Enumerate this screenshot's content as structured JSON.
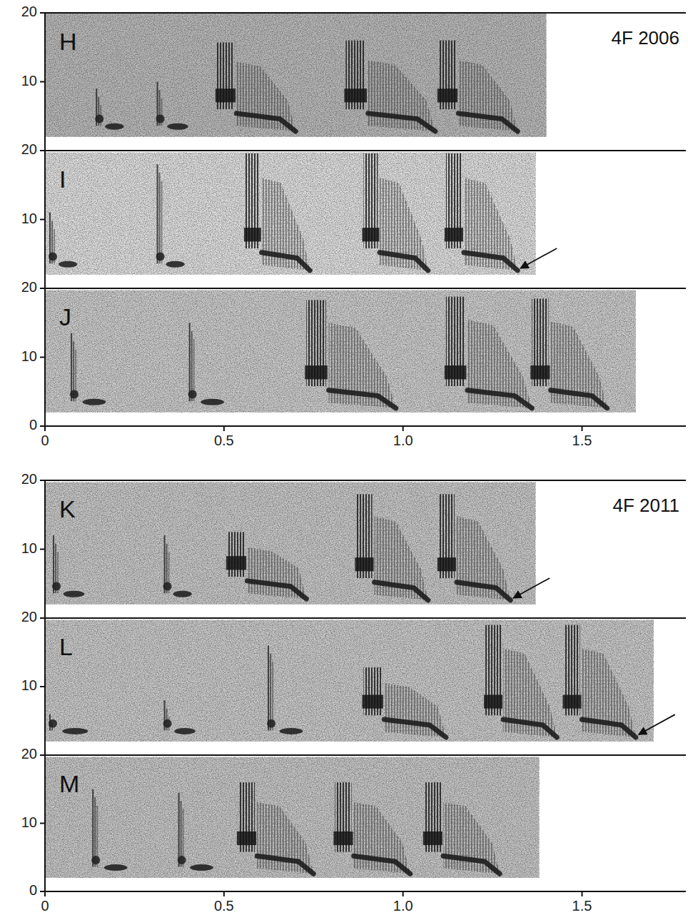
{
  "chart_data": [
    {
      "type": "spectrogram",
      "title": "H",
      "annotation": "4F 2006",
      "xlim": [
        0,
        1.79
      ],
      "ylim": [
        0,
        20
      ],
      "yticks": [
        10,
        20
      ],
      "duration": 1.4,
      "band": [
        2,
        20
      ],
      "notes": [
        {
          "type": "intro",
          "start": 0.14,
          "end": 0.22,
          "fmin": 3,
          "fmax": 9
        },
        {
          "type": "intro",
          "start": 0.31,
          "end": 0.4,
          "fmin": 3,
          "fmax": 10
        },
        {
          "type": "complex",
          "start": 0.48,
          "end": 0.7,
          "fmin": 2.8,
          "fmax": 15.7
        },
        {
          "type": "complex",
          "start": 0.84,
          "end": 1.09,
          "fmin": 2.8,
          "fmax": 16
        },
        {
          "type": "complex",
          "start": 1.1,
          "end": 1.32,
          "fmin": 2.8,
          "fmax": 16
        }
      ]
    },
    {
      "type": "spectrogram",
      "title": "I",
      "xlim": [
        0,
        1.79
      ],
      "ylim": [
        0,
        20
      ],
      "yticks": [
        10,
        20
      ],
      "duration": 1.37,
      "band": [
        2,
        19.7
      ],
      "arrow": [
        1.32,
        2.7
      ],
      "notes": [
        {
          "type": "intro",
          "start": 0.01,
          "end": 0.09,
          "fmin": 3,
          "fmax": 11
        },
        {
          "type": "intro",
          "start": 0.31,
          "end": 0.39,
          "fmin": 3,
          "fmax": 18
        },
        {
          "type": "complex",
          "start": 0.56,
          "end": 0.74,
          "fmin": 2.6,
          "fmax": 19.6
        },
        {
          "type": "complex",
          "start": 0.89,
          "end": 1.07,
          "fmin": 2.6,
          "fmax": 19.6
        },
        {
          "type": "complex",
          "start": 1.12,
          "end": 1.32,
          "fmin": 2.6,
          "fmax": 19.6
        }
      ]
    },
    {
      "type": "spectrogram",
      "title": "J",
      "xlim": [
        0,
        1.79
      ],
      "ylim": [
        0,
        20
      ],
      "yticks": [
        0,
        10,
        20
      ],
      "xticks": [
        0,
        0.5,
        {
          "value": 1,
          "label": "1.0"
        },
        1.5
      ],
      "duration": 1.65,
      "band": [
        2,
        19.7
      ],
      "notes": [
        {
          "type": "intro",
          "start": 0.07,
          "end": 0.17,
          "fmin": 3,
          "fmax": 13.5
        },
        {
          "type": "intro",
          "start": 0.4,
          "end": 0.5,
          "fmin": 3,
          "fmax": 15
        },
        {
          "type": "complex",
          "start": 0.73,
          "end": 0.98,
          "fmin": 2.6,
          "fmax": 18.3
        },
        {
          "type": "complex",
          "start": 1.12,
          "end": 1.36,
          "fmin": 2.6,
          "fmax": 18.8
        },
        {
          "type": "complex",
          "start": 1.36,
          "end": 1.57,
          "fmin": 2.6,
          "fmax": 18.5
        }
      ]
    },
    {
      "type": "spectrogram",
      "title": "K",
      "annotation": "4F 2011",
      "xlim": [
        0,
        1.79
      ],
      "ylim": [
        0,
        20
      ],
      "yticks": [
        10,
        20
      ],
      "duration": 1.37,
      "band": [
        2,
        19.7
      ],
      "arrow": [
        1.3,
        2.7
      ],
      "notes": [
        {
          "type": "intro",
          "start": 0.02,
          "end": 0.11,
          "fmin": 3,
          "fmax": 12
        },
        {
          "type": "intro",
          "start": 0.33,
          "end": 0.41,
          "fmin": 3,
          "fmax": 12
        },
        {
          "type": "complex",
          "start": 0.51,
          "end": 0.73,
          "fmin": 2.8,
          "fmax": 12.5
        },
        {
          "type": "complex",
          "start": 0.87,
          "end": 1.07,
          "fmin": 2.6,
          "fmax": 18
        },
        {
          "type": "complex",
          "start": 1.1,
          "end": 1.3,
          "fmin": 2.6,
          "fmax": 18
        }
      ]
    },
    {
      "type": "spectrogram",
      "title": "L",
      "xlim": [
        0,
        1.79
      ],
      "ylim": [
        0,
        20
      ],
      "yticks": [
        10,
        20
      ],
      "duration": 1.7,
      "band": [
        2,
        19.7
      ],
      "arrow": [
        1.65,
        2.8
      ],
      "notes": [
        {
          "type": "intro",
          "start": 0.01,
          "end": 0.12,
          "fmin": 3,
          "fmax": 6
        },
        {
          "type": "intro",
          "start": 0.33,
          "end": 0.42,
          "fmin": 3,
          "fmax": 8
        },
        {
          "type": "intro",
          "start": 0.62,
          "end": 0.72,
          "fmin": 3,
          "fmax": 16
        },
        {
          "type": "complex",
          "start": 0.89,
          "end": 1.12,
          "fmin": 2.6,
          "fmax": 12.8
        },
        {
          "type": "complex",
          "start": 1.23,
          "end": 1.43,
          "fmin": 2.6,
          "fmax": 19
        },
        {
          "type": "complex",
          "start": 1.45,
          "end": 1.65,
          "fmin": 2.6,
          "fmax": 19
        }
      ]
    },
    {
      "type": "spectrogram",
      "title": "M",
      "xlim": [
        0,
        1.79
      ],
      "ylim": [
        0,
        20
      ],
      "yticks": [
        0,
        10,
        20
      ],
      "xticks": [
        0,
        0.5,
        {
          "value": 1,
          "label": "1.0"
        },
        1.5
      ],
      "duration": 1.38,
      "band": [
        2,
        19.7
      ],
      "notes": [
        {
          "type": "intro",
          "start": 0.13,
          "end": 0.23,
          "fmin": 3,
          "fmax": 15
        },
        {
          "type": "intro",
          "start": 0.37,
          "end": 0.47,
          "fmin": 3,
          "fmax": 14.5
        },
        {
          "type": "complex",
          "start": 0.54,
          "end": 0.75,
          "fmin": 2.6,
          "fmax": 16
        },
        {
          "type": "complex",
          "start": 0.81,
          "end": 1.02,
          "fmin": 2.6,
          "fmax": 16
        },
        {
          "type": "complex",
          "start": 1.06,
          "end": 1.27,
          "fmin": 2.6,
          "fmax": 16
        }
      ]
    }
  ]
}
